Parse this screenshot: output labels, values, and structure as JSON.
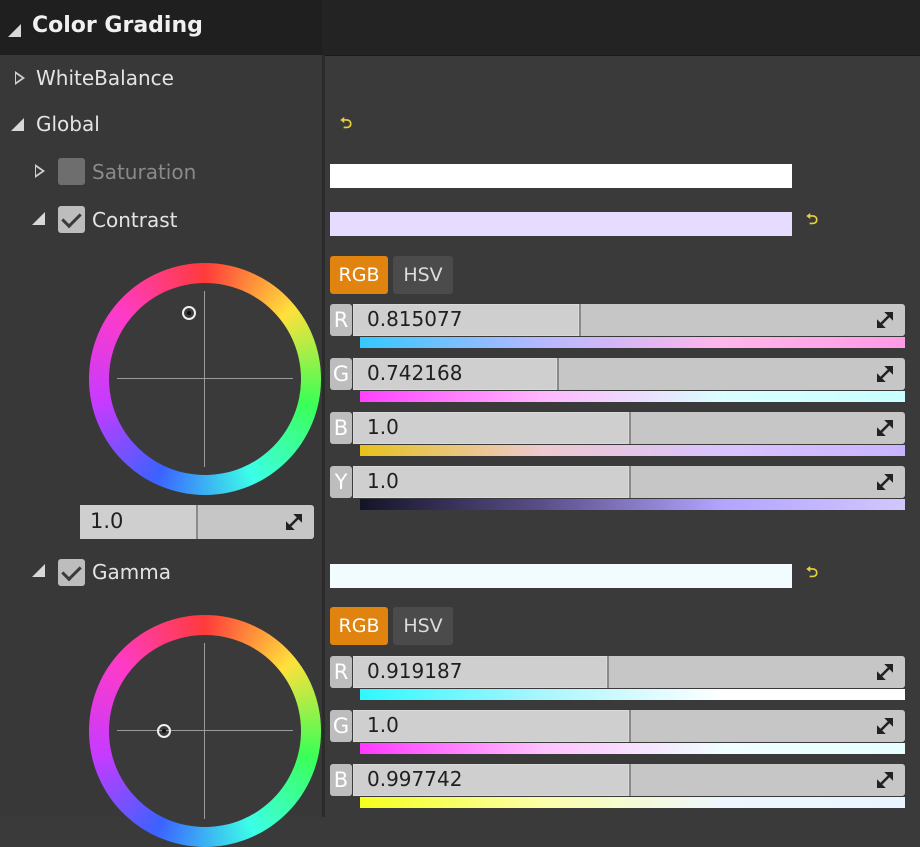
{
  "header": {
    "title": "Color Grading"
  },
  "tree": {
    "white_balance": "WhiteBalance",
    "global": "Global",
    "saturation": "Saturation",
    "contrast": "Contrast",
    "gamma": "Gamma"
  },
  "contrast": {
    "swatch_color": "#e6dcff",
    "mode_rgb": "RGB",
    "mode_hsv": "HSV",
    "channels": [
      {
        "letter": "R",
        "value": "0.815077",
        "fill": 0.41
      },
      {
        "letter": "G",
        "value": "0.742168",
        "fill": 0.37
      },
      {
        "letter": "B",
        "value": "1.0",
        "fill": 0.5
      },
      {
        "letter": "Y",
        "value": "1.0",
        "fill": 0.5
      }
    ],
    "magnitude": "1.0"
  },
  "gamma": {
    "swatch_color": "#f2fbff",
    "mode_rgb": "RGB",
    "mode_hsv": "HSV",
    "channels": [
      {
        "letter": "R",
        "value": "0.919187",
        "fill": 0.46
      },
      {
        "letter": "G",
        "value": "1.0",
        "fill": 0.5
      },
      {
        "letter": "B",
        "value": "0.997742",
        "fill": 0.5
      }
    ]
  },
  "colors": {
    "accent": "#e0830f",
    "reset_icon": "#e8d03b",
    "saturation_swatch": "#ffffff"
  },
  "icons": {
    "reset": "reset-arrow-icon",
    "expand": "expand-arrows-icon",
    "check": "checkmark-icon"
  }
}
